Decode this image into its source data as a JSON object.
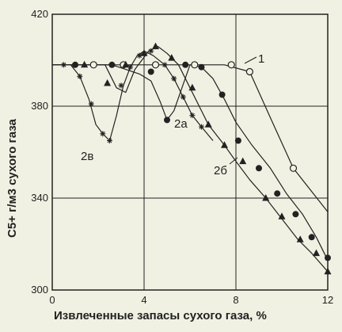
{
  "chart_data": {
    "type": "line",
    "title": "",
    "xlabel": "Извлеченные запасы сухого газа, %",
    "ylabel": "C5+ г/м3 сухого газа",
    "xlim": [
      0,
      12
    ],
    "ylim": [
      300,
      420
    ],
    "x_ticks": [
      0,
      4,
      8,
      12
    ],
    "y_ticks": [
      300,
      340,
      380,
      420
    ],
    "x_tick_labels": [
      "0",
      "4",
      "8",
      "12"
    ],
    "y_tick_labels": [
      "300",
      "340",
      "380",
      "420"
    ],
    "grid": true,
    "colors": {
      "background": "#f0f1e2",
      "line": "#222222"
    },
    "series": [
      {
        "name": "1",
        "marker": "open-circle",
        "x": [
          0,
          1.0,
          1.8,
          3.1,
          4.5,
          6.2,
          7.5,
          8.6,
          9.5,
          10.5,
          12.0
        ],
        "y": [
          398,
          398,
          398,
          398,
          398,
          398,
          398,
          395,
          375,
          353,
          334
        ],
        "marker_x": [
          1.8,
          3.1,
          4.5,
          6.2,
          7.8,
          8.6,
          10.5
        ],
        "marker_y": [
          398,
          398,
          398,
          398,
          398,
          395,
          353
        ]
      },
      {
        "name": "2а",
        "marker": "filled-circle",
        "x": [
          0,
          1.0,
          2.6,
          3.2,
          3.8,
          4.3,
          4.7,
          5.0,
          5.3,
          6.0,
          6.5,
          7.0,
          7.5,
          8.0,
          8.7,
          9.5,
          10.2,
          10.9,
          11.5,
          12.0
        ],
        "y": [
          398,
          398,
          398,
          396,
          394,
          391,
          382,
          374,
          378,
          398,
          397,
          392,
          383,
          373,
          363,
          353,
          342,
          333,
          323,
          313
        ],
        "marker_x": [
          1.0,
          2.6,
          4.3,
          5.0,
          5.8,
          6.5,
          7.4,
          8.1,
          9.0,
          9.8,
          10.6,
          11.3,
          12.0
        ],
        "marker_y": [
          398,
          398,
          395,
          374,
          398,
          397,
          385,
          365,
          353,
          342,
          333,
          323,
          314
        ]
      },
      {
        "name": "2б",
        "marker": "filled-triangle",
        "x": [
          0,
          1.4,
          2.3,
          2.8,
          3.2,
          3.6,
          4.2,
          4.6,
          5.0,
          5.5,
          6.0,
          6.8,
          7.5,
          8.0,
          8.6,
          9.3,
          10.0,
          10.7,
          11.3,
          12.0
        ],
        "y": [
          398,
          398,
          398,
          388,
          386,
          396,
          404,
          406,
          403,
          398,
          388,
          372,
          363,
          356,
          348,
          340,
          331,
          322,
          316,
          308
        ],
        "marker_x": [
          1.4,
          2.4,
          3.2,
          4.0,
          4.5,
          5.2,
          6.1,
          6.8,
          7.5,
          8.3,
          9.3,
          10.0,
          10.8,
          11.5,
          12.0
        ],
        "marker_y": [
          398,
          390,
          398,
          403,
          406,
          401,
          388,
          372,
          363,
          356,
          340,
          332,
          322,
          316,
          308
        ]
      },
      {
        "name": "2в",
        "marker": "asterisk",
        "x": [
          0,
          0.8,
          1.2,
          1.6,
          1.9,
          2.2,
          2.5,
          2.8,
          3.1,
          3.4,
          3.7,
          4.0,
          4.4,
          4.9,
          5.3,
          5.7,
          6.1,
          6.5,
          7.0
        ],
        "y": [
          398,
          398,
          393,
          383,
          372,
          368,
          365,
          376,
          389,
          397,
          402,
          404,
          402,
          398,
          392,
          384,
          376,
          371,
          365
        ],
        "marker_x": [
          0.5,
          1.2,
          1.7,
          2.2,
          2.5,
          3.0,
          3.4,
          3.8,
          4.3,
          4.9,
          5.3,
          5.7,
          6.1,
          6.5
        ],
        "marker_y": [
          398,
          393,
          381,
          368,
          365,
          389,
          397,
          402,
          404,
          398,
          392,
          384,
          376,
          371
        ]
      }
    ]
  }
}
